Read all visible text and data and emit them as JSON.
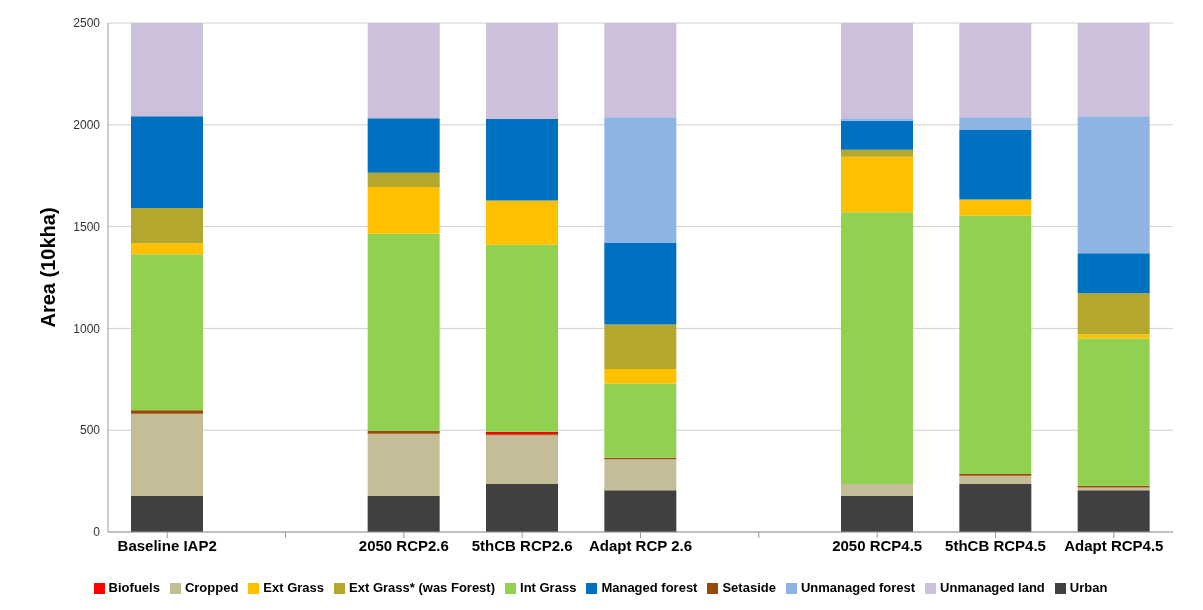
{
  "chart_data": {
    "type": "bar",
    "stacked": true,
    "ylabel": "Area (10kha)",
    "categories": [
      "Baseline IAP2",
      null,
      "2050 RCP2.6",
      "5thCB RCP2.6",
      "Adapt RCP 2.6",
      null,
      "2050 RCP4.5",
      "5thCB RCP4.5",
      "Adapt RCP4.5"
    ],
    "ylim": [
      0,
      2500
    ],
    "yticks": [
      0,
      500,
      1000,
      1500,
      2000,
      2500
    ],
    "grid": "y",
    "legend": "bottom",
    "series": [
      {
        "name": "Urban",
        "color": "#404040",
        "values": [
          177,
          null,
          177,
          236,
          205,
          null,
          177,
          236,
          205
        ]
      },
      {
        "name": "Cropped",
        "color": "#c4bd97",
        "values": [
          404,
          null,
          306,
          239,
          152,
          null,
          59,
          40,
          14
        ]
      },
      {
        "name": "Setaside",
        "color": "#984807",
        "values": [
          17,
          null,
          14,
          5,
          8,
          null,
          0,
          9,
          8
        ]
      },
      {
        "name": "Biofuels",
        "color": "#ff0000",
        "values": [
          0,
          null,
          0,
          13,
          0,
          null,
          0,
          0,
          0
        ]
      },
      {
        "name": "Int Grass",
        "color": "#92d050",
        "values": [
          766,
          null,
          968,
          918,
          364,
          null,
          1335,
          1269,
          724
        ]
      },
      {
        "name": "Ext Grass",
        "color": "#ffc000",
        "values": [
          54,
          null,
          230,
          217,
          72,
          null,
          272,
          79,
          20
        ]
      },
      {
        "name": "Ext Grass* (was Forest)",
        "color": "#b3a72e",
        "values": [
          173,
          null,
          69,
          0,
          218,
          null,
          34,
          0,
          202
        ]
      },
      {
        "name": "Managed forest",
        "color": "#0070c0",
        "values": [
          451,
          null,
          268,
          401,
          400,
          null,
          143,
          342,
          196
        ]
      },
      {
        "name": "Unmanaged forest",
        "color": "#8db4e2",
        "values": [
          0,
          null,
          0,
          0,
          618,
          null,
          12,
          62,
          673
        ]
      },
      {
        "name": "Unmanaged land",
        "color": "#ccc0da",
        "values": [
          458,
          null,
          468,
          471,
          463,
          null,
          468,
          463,
          458
        ]
      }
    ]
  }
}
